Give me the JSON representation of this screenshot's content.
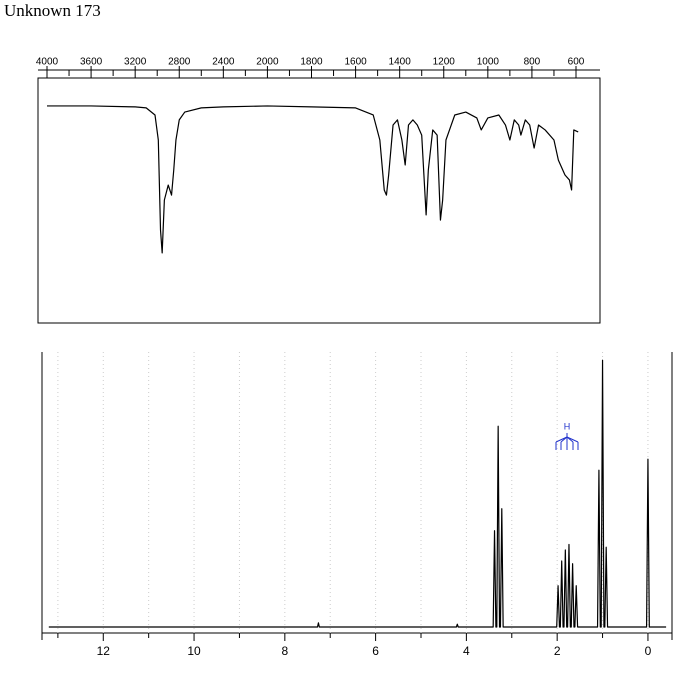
{
  "title": "Unknown 173",
  "chart_data": [
    {
      "type": "line",
      "xscale": "tick-spaced",
      "xaxis_position": "top",
      "color": "#000000",
      "xlim": [
        4000,
        600
      ],
      "ylim": [
        0,
        100
      ],
      "xticks": [
        4000,
        3600,
        3200,
        2800,
        2400,
        2000,
        1800,
        1600,
        1400,
        1200,
        1000,
        800,
        600
      ],
      "x": [
        4000,
        3600,
        3200,
        3100,
        3020,
        2990,
        2970,
        2955,
        2935,
        2900,
        2870,
        2850,
        2830,
        2800,
        2750,
        2600,
        2400,
        2000,
        1800,
        1600,
        1520,
        1490,
        1470,
        1460,
        1450,
        1430,
        1410,
        1390,
        1375,
        1360,
        1340,
        1320,
        1300,
        1290,
        1280,
        1270,
        1250,
        1230,
        1215,
        1205,
        1190,
        1150,
        1100,
        1050,
        1030,
        1000,
        950,
        920,
        900,
        880,
        860,
        850,
        830,
        810,
        790,
        770,
        740,
        700,
        680,
        650,
        630,
        620,
        610,
        590
      ],
      "values": [
        88.6,
        88.6,
        88.2,
        87.8,
        84.9,
        74.7,
        38,
        28.6,
        50.2,
        56.3,
        52.2,
        62.4,
        74.7,
        82.9,
        86.1,
        87.8,
        88.2,
        88.6,
        88.2,
        87.8,
        84.9,
        74.7,
        54.3,
        52.2,
        60.4,
        80.8,
        82.9,
        74.7,
        64.5,
        80.8,
        82.9,
        80.8,
        76.7,
        60.4,
        44.1,
        62.4,
        78.8,
        76.7,
        42,
        50.2,
        74.7,
        84.9,
        86.1,
        83.7,
        78.8,
        83.7,
        84.9,
        80.8,
        74.7,
        82.9,
        80.8,
        76.7,
        82.9,
        80.8,
        71.4,
        80.8,
        78.8,
        74.7,
        66.5,
        60.4,
        58.4,
        54.3,
        78.8,
        78
      ]
    },
    {
      "type": "line",
      "xscale": "linear",
      "xaxis_position": "bottom",
      "color": "#000000",
      "grid": true,
      "annotation": "H",
      "xlim": [
        13.35,
        -0.53
      ],
      "ylim": [
        0,
        100
      ],
      "xticks": [
        12,
        10,
        8,
        6,
        4,
        2,
        0
      ],
      "xminor": [
        13,
        11,
        9,
        7,
        5,
        3,
        1
      ],
      "x": [
        13.2,
        7.28,
        7.26,
        7.24,
        4.22,
        4.2,
        4.18,
        3.41,
        3.38,
        3.35,
        3.33,
        3.3,
        3.27,
        3.25,
        3.22,
        3.19,
        2.01,
        1.98,
        1.95,
        1.93,
        1.9,
        1.87,
        1.85,
        1.82,
        1.79,
        1.77,
        1.74,
        1.71,
        1.69,
        1.66,
        1.63,
        1.61,
        1.58,
        1.55,
        1.11,
        1.08,
        1.05,
        1.03,
        1.0,
        0.97,
        0.95,
        0.92,
        0.89,
        0.03,
        0,
        -0.03,
        -0.4
      ],
      "values": [
        0,
        0,
        1.5,
        0,
        0,
        1,
        0,
        0,
        35,
        0,
        0,
        73,
        0,
        0,
        43,
        0,
        0,
        15,
        0,
        0,
        24,
        0,
        0,
        28,
        0,
        0,
        30,
        0,
        0,
        23,
        0,
        0,
        15,
        0,
        0,
        57,
        0,
        0,
        97,
        0,
        0,
        29,
        0,
        0,
        61,
        0,
        0
      ]
    }
  ]
}
